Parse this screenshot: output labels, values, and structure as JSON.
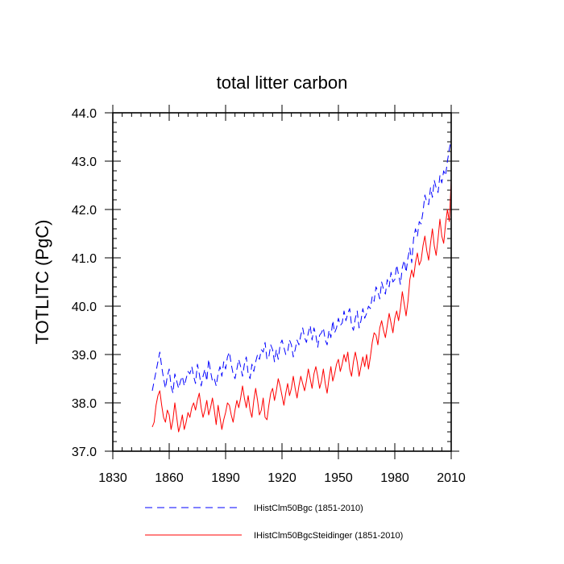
{
  "chart_data": {
    "type": "line",
    "title": "total litter carbon",
    "xlabel": "",
    "ylabel": "TOTLITC  (PgC)",
    "xlim": [
      1830,
      2010
    ],
    "ylim": [
      37.0,
      44.0
    ],
    "x_ticks": [
      1830,
      1860,
      1890,
      1920,
      1950,
      1980,
      2010
    ],
    "x_tick_labels": [
      "1830",
      "1860",
      "1890",
      "1920",
      "1950",
      "1980",
      "2010"
    ],
    "y_ticks": [
      37.0,
      38.0,
      39.0,
      40.0,
      41.0,
      42.0,
      43.0,
      44.0
    ],
    "y_tick_labels": [
      "37.0",
      "38.0",
      "39.0",
      "40.0",
      "41.0",
      "42.0",
      "43.0",
      "44.0"
    ],
    "grid": false,
    "legend_position": "bottom",
    "x": [
      1851,
      1852,
      1853,
      1854,
      1855,
      1856,
      1857,
      1858,
      1859,
      1860,
      1861,
      1862,
      1863,
      1864,
      1865,
      1866,
      1867,
      1868,
      1869,
      1870,
      1871,
      1872,
      1873,
      1874,
      1875,
      1876,
      1877,
      1878,
      1879,
      1880,
      1881,
      1882,
      1883,
      1884,
      1885,
      1886,
      1887,
      1888,
      1889,
      1890,
      1891,
      1892,
      1893,
      1894,
      1895,
      1896,
      1897,
      1898,
      1899,
      1900,
      1901,
      1902,
      1903,
      1904,
      1905,
      1906,
      1907,
      1908,
      1909,
      1910,
      1911,
      1912,
      1913,
      1914,
      1915,
      1916,
      1917,
      1918,
      1919,
      1920,
      1921,
      1922,
      1923,
      1924,
      1925,
      1926,
      1927,
      1928,
      1929,
      1930,
      1931,
      1932,
      1933,
      1934,
      1935,
      1936,
      1937,
      1938,
      1939,
      1940,
      1941,
      1942,
      1943,
      1944,
      1945,
      1946,
      1947,
      1948,
      1949,
      1950,
      1951,
      1952,
      1953,
      1954,
      1955,
      1956,
      1957,
      1958,
      1959,
      1960,
      1961,
      1962,
      1963,
      1964,
      1965,
      1966,
      1967,
      1968,
      1969,
      1970,
      1971,
      1972,
      1973,
      1974,
      1975,
      1976,
      1977,
      1978,
      1979,
      1980,
      1981,
      1982,
      1983,
      1984,
      1985,
      1986,
      1987,
      1988,
      1989,
      1990,
      1991,
      1992,
      1993,
      1994,
      1995,
      1996,
      1997,
      1998,
      1999,
      2000,
      2001,
      2002,
      2003,
      2004,
      2005,
      2006,
      2007,
      2008,
      2009,
      2010
    ],
    "series": [
      {
        "name": "IHistClm50Bgc (1851-2010)",
        "color": "#0000ff",
        "dash": "dashed",
        "values": [
          38.25,
          38.45,
          38.65,
          38.85,
          39.05,
          38.75,
          38.5,
          38.3,
          38.55,
          38.7,
          38.35,
          38.2,
          38.6,
          38.45,
          38.3,
          38.45,
          38.55,
          38.35,
          38.5,
          38.65,
          38.6,
          38.75,
          38.55,
          38.4,
          38.8,
          38.6,
          38.35,
          38.55,
          38.7,
          38.45,
          38.9,
          38.65,
          38.45,
          38.5,
          38.35,
          38.6,
          38.75,
          38.55,
          38.85,
          38.7,
          38.95,
          39.05,
          38.8,
          38.6,
          38.5,
          38.7,
          38.9,
          38.75,
          38.55,
          38.8,
          38.95,
          38.6,
          38.5,
          38.8,
          38.65,
          38.85,
          39.0,
          38.9,
          39.1,
          39.05,
          39.25,
          38.9,
          38.95,
          39.2,
          39.1,
          38.85,
          39.1,
          38.9,
          39.2,
          39.3,
          39.15,
          39.0,
          39.05,
          39.3,
          39.2,
          38.95,
          39.1,
          39.3,
          39.2,
          39.4,
          39.55,
          39.35,
          39.25,
          39.45,
          39.6,
          39.3,
          39.55,
          39.4,
          39.15,
          39.4,
          39.45,
          39.55,
          39.3,
          39.2,
          39.5,
          39.35,
          39.7,
          39.45,
          39.55,
          39.75,
          39.6,
          39.65,
          39.9,
          39.7,
          39.85,
          39.95,
          39.6,
          39.5,
          39.75,
          39.9,
          39.55,
          39.7,
          39.95,
          39.75,
          39.85,
          40.0,
          39.95,
          40.2,
          40.1,
          40.4,
          40.3,
          40.15,
          40.5,
          40.35,
          40.25,
          40.55,
          40.4,
          40.7,
          40.5,
          40.55,
          40.85,
          40.65,
          40.45,
          40.8,
          40.95,
          40.7,
          41.0,
          41.2,
          40.9,
          41.4,
          41.6,
          41.45,
          41.75,
          41.7,
          41.95,
          42.3,
          42.15,
          42.1,
          42.45,
          42.25,
          42.6,
          42.45,
          42.35,
          42.7,
          42.55,
          42.8,
          42.7,
          43.0,
          43.25,
          43.45
        ]
      },
      {
        "name": "IHistClm50BgcSteidinger (1851-2010)",
        "color": "#ff0000",
        "dash": "solid",
        "values": [
          37.5,
          37.6,
          37.95,
          38.15,
          38.25,
          37.95,
          37.7,
          37.6,
          37.85,
          37.75,
          37.45,
          37.65,
          38.0,
          37.7,
          37.4,
          37.55,
          37.75,
          37.45,
          37.6,
          37.8,
          37.7,
          37.9,
          38.0,
          37.85,
          38.05,
          38.2,
          37.9,
          37.7,
          37.85,
          38.05,
          37.75,
          37.9,
          38.1,
          37.85,
          37.55,
          37.95,
          37.7,
          37.45,
          37.65,
          37.8,
          38.0,
          37.95,
          37.75,
          37.6,
          37.85,
          38.05,
          37.9,
          38.1,
          38.35,
          38.1,
          37.9,
          38.15,
          37.85,
          37.7,
          38.05,
          38.3,
          38.05,
          37.75,
          37.85,
          38.1,
          37.7,
          37.65,
          37.95,
          38.2,
          38.3,
          38.05,
          38.25,
          38.5,
          38.35,
          38.15,
          37.95,
          38.2,
          38.4,
          38.15,
          38.3,
          38.55,
          38.3,
          38.1,
          38.35,
          38.55,
          38.4,
          38.25,
          38.45,
          38.7,
          38.5,
          38.3,
          38.6,
          38.75,
          38.55,
          38.3,
          38.45,
          38.7,
          38.4,
          38.2,
          38.5,
          38.75,
          38.45,
          38.6,
          38.8,
          38.9,
          38.65,
          38.8,
          39.0,
          38.85,
          39.05,
          38.7,
          38.55,
          38.85,
          39.05,
          38.85,
          38.55,
          38.75,
          38.95,
          38.75,
          39.0,
          38.7,
          38.95,
          39.25,
          39.45,
          39.4,
          39.2,
          39.55,
          39.7,
          39.5,
          39.35,
          39.6,
          39.85,
          39.65,
          39.45,
          39.75,
          39.9,
          39.7,
          39.95,
          40.3,
          40.05,
          39.8,
          40.1,
          40.55,
          40.75,
          40.6,
          40.9,
          41.1,
          40.85,
          40.95,
          41.25,
          41.45,
          41.15,
          40.95,
          41.3,
          41.6,
          41.25,
          41.05,
          41.4,
          41.8,
          41.45,
          41.3,
          41.7,
          42.0,
          41.75,
          42.6
        ]
      }
    ]
  }
}
